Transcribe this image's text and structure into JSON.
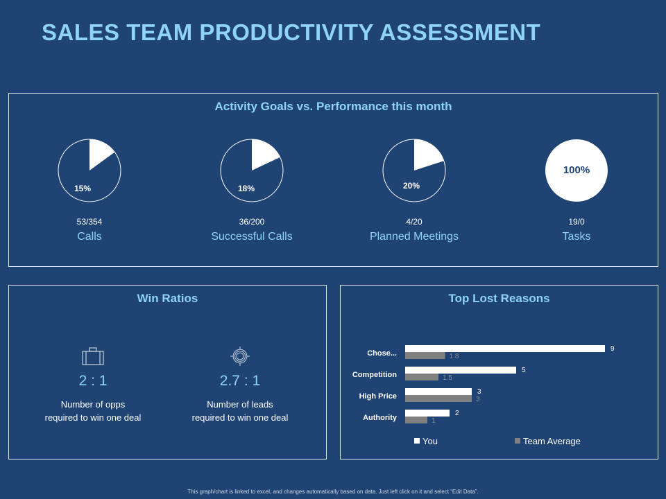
{
  "title": "SALES TEAM PRODUCTIVITY ASSESSMENT",
  "activity": {
    "title": "Activity Goals vs. Performance this month",
    "items": [
      {
        "percent_label": "15%",
        "percent": 15,
        "fraction": "53/354",
        "label": "Calls"
      },
      {
        "percent_label": "18%",
        "percent": 18,
        "fraction": "36/200",
        "label": "Successful Calls"
      },
      {
        "percent_label": "20%",
        "percent": 20,
        "fraction": "4/20",
        "label": "Planned Meetings"
      },
      {
        "percent_label": "100%",
        "percent": 100,
        "fraction": "19/0",
        "label": "Tasks"
      }
    ]
  },
  "win_ratios": {
    "title": "Win Ratios",
    "items": [
      {
        "icon": "briefcase-icon",
        "value": "2 : 1",
        "line1": "Number of opps",
        "line2": "required to win one deal"
      },
      {
        "icon": "target-icon",
        "value": "2.7 : 1",
        "line1": "Number of leads",
        "line2": "required to win one deal"
      }
    ]
  },
  "chart_data": {
    "type": "bar",
    "orientation": "horizontal",
    "title": "Top Lost Reasons",
    "categories": [
      "Chose...",
      "Competition",
      "High Price",
      "Authority"
    ],
    "series": [
      {
        "name": "You",
        "values": [
          9,
          5,
          3,
          2
        ],
        "color": "#ffffff"
      },
      {
        "name": "Team Average",
        "values": [
          1.8,
          1.5,
          3,
          1
        ],
        "color": "#808080"
      }
    ],
    "legend": "bottom",
    "grid": false
  },
  "footer": "This graph/chart is linked to excel, and changes automatically based on data. Just left click on it and select “Edit Data”."
}
